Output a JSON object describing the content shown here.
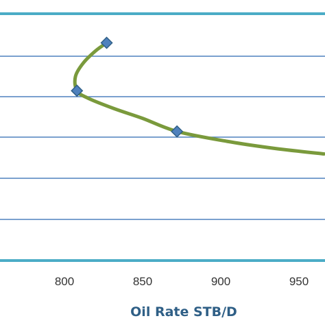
{
  "chart_data": {
    "type": "line",
    "title": "",
    "xlabel": "Oil Rate STB/D",
    "ylabel": "",
    "x_tick_labels": [
      "800",
      "850",
      "900",
      "950"
    ],
    "x_ticks": [
      800,
      850,
      900,
      950
    ],
    "xlim": [
      760,
      966
    ],
    "grid": "horizontal",
    "marker": "diamond",
    "colors": {
      "line": "#7a9a3c",
      "marker_fill": "#4f81bd",
      "marker_edge": "#2f5f86",
      "grid": "#4f81bd",
      "frame": "#4bacc6"
    },
    "series": [
      {
        "points": [
          {
            "x": 827,
            "y": 0.882
          },
          {
            "x": 808,
            "y": 0.688
          },
          {
            "x": 872,
            "y": 0.523
          }
        ]
      }
    ],
    "curve": [
      {
        "x": 827,
        "y": 0.882
      },
      {
        "x": 820,
        "y": 0.85
      },
      {
        "x": 812,
        "y": 0.8
      },
      {
        "x": 807,
        "y": 0.745
      },
      {
        "x": 808,
        "y": 0.688
      },
      {
        "x": 815,
        "y": 0.658
      },
      {
        "x": 832,
        "y": 0.615
      },
      {
        "x": 850,
        "y": 0.576
      },
      {
        "x": 872,
        "y": 0.523
      },
      {
        "x": 904,
        "y": 0.483
      },
      {
        "x": 935,
        "y": 0.454
      },
      {
        "x": 966,
        "y": 0.432
      }
    ]
  }
}
